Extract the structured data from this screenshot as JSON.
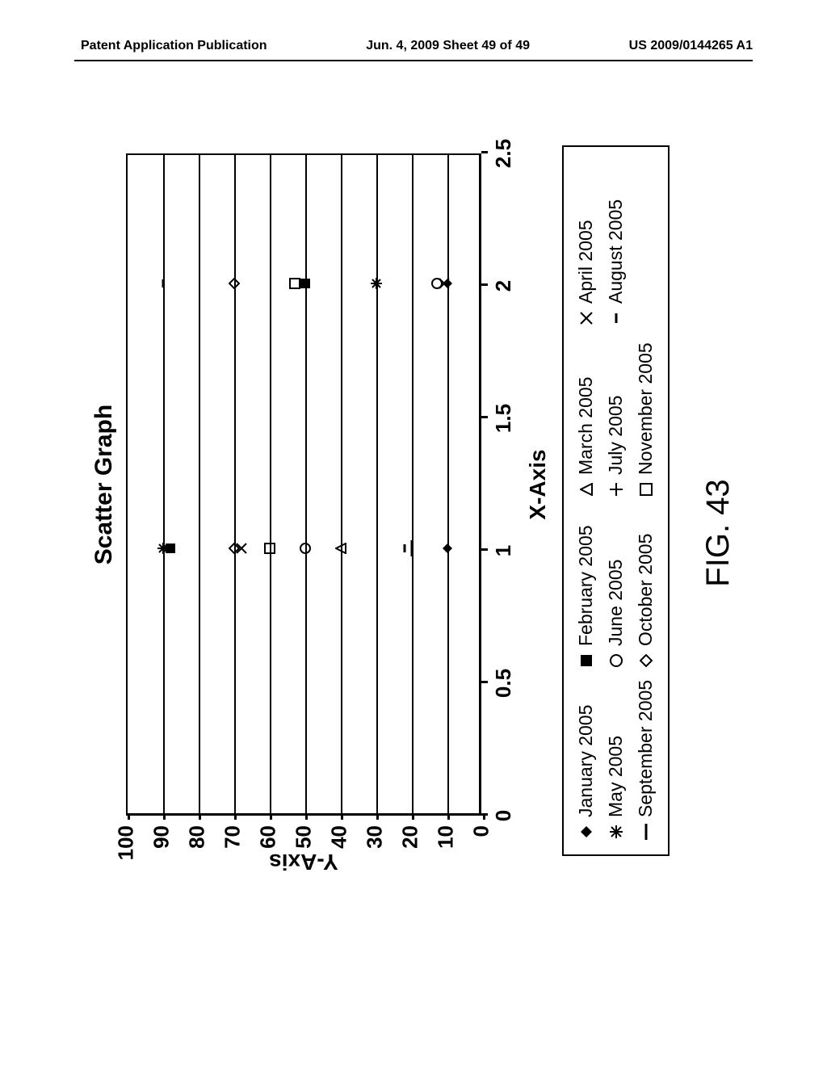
{
  "header": {
    "left": "Patent Application Publication",
    "center": "Jun. 4, 2009  Sheet 49 of 49",
    "right": "US 2009/0144265 A1"
  },
  "chart": {
    "type": "scatter",
    "title": "Scatter Graph",
    "xlabel": "X-Axis",
    "ylabel": "Y-Axis",
    "xlim": [
      0,
      2.5
    ],
    "ylim": [
      0,
      100
    ],
    "xticks": [
      0,
      0.5,
      1,
      1.5,
      2,
      2.5
    ],
    "yticks": [
      0,
      10,
      20,
      30,
      40,
      50,
      60,
      70,
      80,
      90,
      100
    ],
    "gridlines_y": [
      10,
      20,
      30,
      40,
      50,
      60,
      70,
      80,
      90
    ],
    "background_color": "#ffffff",
    "axis_color": "#000000",
    "tick_fontsize": 26,
    "label_fontsize": 28,
    "title_fontsize": 30,
    "marker_size": 14,
    "marker_stroke": "#000000",
    "series": [
      {
        "name": "January 2005",
        "marker": "diamond-filled",
        "points": [
          [
            1,
            10
          ],
          [
            2,
            10
          ]
        ]
      },
      {
        "name": "February 2005",
        "marker": "square-filled",
        "points": [
          [
            1,
            88
          ],
          [
            2,
            50
          ]
        ]
      },
      {
        "name": "March 2005",
        "marker": "triangle-open",
        "points": [
          [
            1,
            40
          ]
        ]
      },
      {
        "name": "April 2005",
        "marker": "x",
        "points": [
          [
            1,
            68
          ],
          [
            2,
            11
          ]
        ]
      },
      {
        "name": "May 2005",
        "marker": "asterisk",
        "points": [
          [
            1,
            90
          ],
          [
            2,
            30
          ]
        ]
      },
      {
        "name": "June 2005",
        "marker": "circle-open",
        "points": [
          [
            1,
            50
          ],
          [
            2,
            13
          ]
        ]
      },
      {
        "name": "July 2005",
        "marker": "plus",
        "points": [
          [
            2,
            30
          ]
        ]
      },
      {
        "name": "August 2005",
        "marker": "dash",
        "points": [
          [
            1,
            22
          ],
          [
            2,
            90
          ]
        ]
      },
      {
        "name": "September 2005",
        "marker": "long-dash",
        "points": [
          [
            1,
            20
          ]
        ]
      },
      {
        "name": "October 2005",
        "marker": "diamond-open",
        "points": [
          [
            1,
            70
          ],
          [
            2,
            70
          ]
        ]
      },
      {
        "name": "November 2005",
        "marker": "square-open",
        "points": [
          [
            1,
            60
          ],
          [
            2,
            53
          ]
        ]
      }
    ],
    "figure_label": "FIG. 43"
  },
  "legend": {
    "font_size": 23,
    "border_color": "#000000",
    "columns": 4,
    "order": [
      "January 2005",
      "February 2005",
      "March 2005",
      "April 2005",
      "May 2005",
      "June 2005",
      "July 2005",
      "August 2005",
      "September 2005",
      "October 2005",
      "November 2005"
    ]
  }
}
